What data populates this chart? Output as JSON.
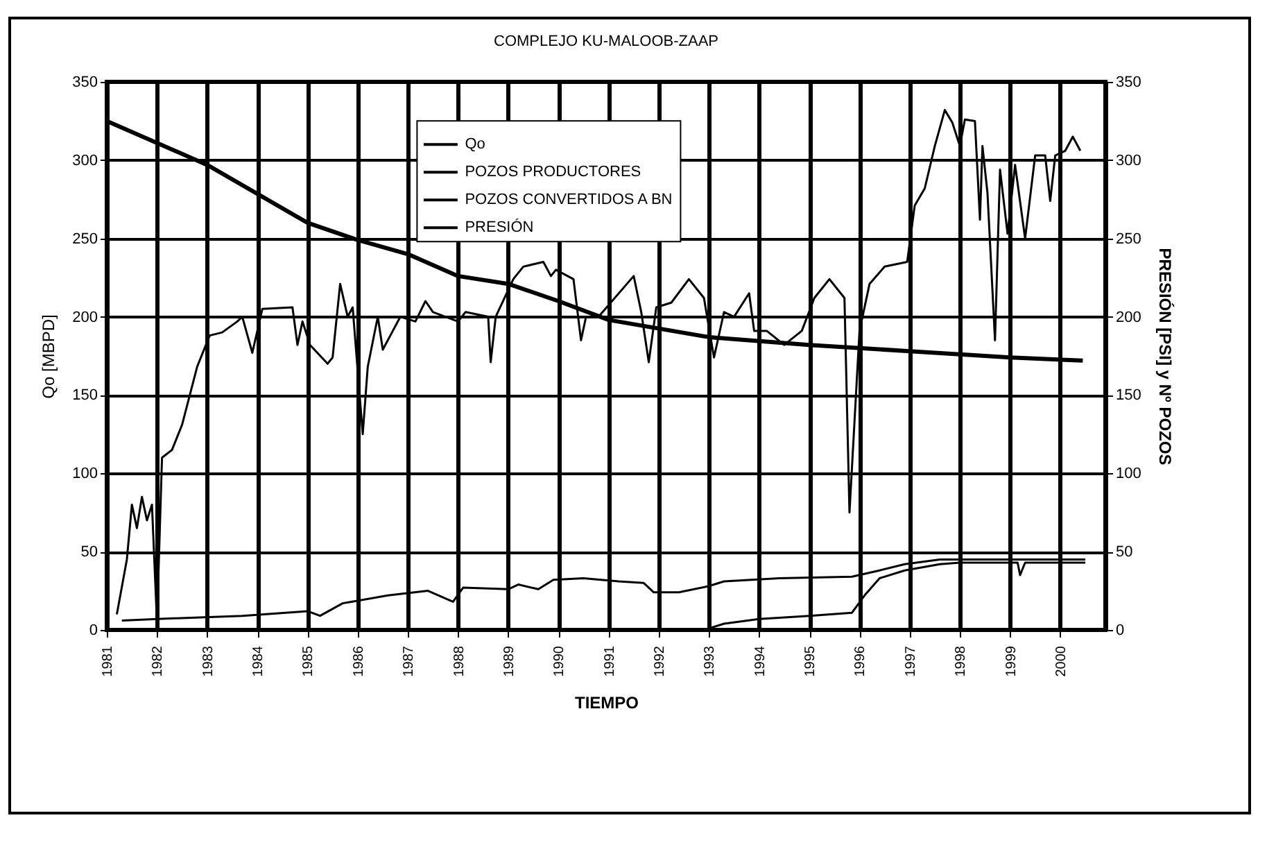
{
  "chart_data": {
    "type": "line",
    "title": "COMPLEJO KU-MALOOB-ZAAP",
    "xlabel": "TIEMPO",
    "ylabel": "Qo [MBPD]",
    "y2label": "PRESIÓN [PSI] y Nº POZOS",
    "xlim": [
      1981,
      2000.9
    ],
    "xticks": [
      1981,
      1982,
      1983,
      1984,
      1985,
      1986,
      1987,
      1988,
      1989,
      1990,
      1991,
      1992,
      1993,
      1994,
      1995,
      1996,
      1997,
      1998,
      1999,
      2000
    ],
    "ylim": [
      0,
      350
    ],
    "yticks": [
      0,
      50,
      100,
      150,
      200,
      250,
      300,
      350
    ],
    "y2lim": [
      0,
      350
    ],
    "y2ticks": [
      0,
      50,
      100,
      150,
      200,
      250,
      300,
      350
    ],
    "grid": true,
    "legend": "top",
    "series": [
      {
        "name": "Qo",
        "color": "#000000",
        "x": [
          1981.2,
          1981.4,
          1981.5,
          1981.6,
          1981.7,
          1981.8,
          1981.9,
          1982.0,
          1982.1,
          1982.3,
          1982.5,
          1982.8,
          1983.05,
          1983.3,
          1983.6,
          1983.7,
          1983.9,
          1984.1,
          1984.7,
          1984.8,
          1984.9,
          1985.05,
          1985.4,
          1985.5,
          1985.65,
          1985.8,
          1985.9,
          1986.1,
          1986.2,
          1986.4,
          1986.5,
          1986.7,
          1986.85,
          1987.15,
          1987.35,
          1987.5,
          1988.0,
          1988.15,
          1988.6,
          1988.65,
          1988.75,
          1989.1,
          1989.3,
          1989.7,
          1989.85,
          1989.95,
          1990.3,
          1990.45,
          1990.55,
          1990.8,
          1991.5,
          1991.65,
          1991.8,
          1991.95,
          1992.25,
          1992.6,
          1992.9,
          1993.1,
          1993.3,
          1993.5,
          1993.8,
          1993.9,
          1994.15,
          1994.5,
          1994.85,
          1995.1,
          1995.4,
          1995.7,
          1995.8,
          1996.0,
          1996.2,
          1996.5,
          1996.95,
          1997.1,
          1997.3,
          1997.5,
          1997.7,
          1997.85,
          1998.0,
          1998.1,
          1998.3,
          1998.4,
          1998.45,
          1998.55,
          1998.7,
          1998.8,
          1998.95,
          1999.1,
          1999.3,
          1999.5,
          1999.7,
          1999.8,
          1999.9,
          2000.1,
          2000.25,
          2000.4
        ],
        "values": [
          10,
          45,
          80,
          65,
          85,
          70,
          80,
          5,
          110,
          115,
          131,
          168,
          188,
          190,
          197,
          200,
          177,
          205,
          206,
          182,
          197,
          182,
          170,
          174,
          221,
          200,
          206,
          125,
          168,
          200,
          179,
          191,
          200,
          197,
          210,
          203,
          197,
          203,
          200,
          171,
          200,
          224,
          232,
          235,
          226,
          230,
          224,
          185,
          200,
          200,
          226,
          203,
          171,
          206,
          209,
          224,
          212,
          174,
          203,
          200,
          215,
          191,
          191,
          182,
          191,
          212,
          224,
          212,
          75,
          191,
          221,
          232,
          235,
          271,
          282,
          309,
          332,
          324,
          309,
          326,
          325,
          262,
          309,
          279,
          185,
          294,
          253,
          297,
          250,
          303,
          303,
          274,
          303,
          306,
          315,
          306
        ]
      },
      {
        "name": "POZOS PRODUCTORES",
        "color": "#000000",
        "axis": "y2",
        "x": [
          1981.3,
          1982.0,
          1983.7,
          1985.0,
          1985.25,
          1985.7,
          1986.6,
          1987.4,
          1987.9,
          1988.1,
          1989.0,
          1989.2,
          1989.6,
          1989.9,
          1990.5,
          1991.2,
          1991.7,
          1991.9,
          1992.4,
          1993.0,
          1993.3,
          1994.4,
          1995.85,
          1996.4,
          1996.9,
          1997.6,
          1998.5,
          2000.5
        ],
        "values": [
          6,
          7,
          9,
          12,
          9,
          17,
          22,
          25,
          18,
          27,
          26,
          29,
          26,
          32,
          33,
          31,
          30,
          24,
          24,
          28,
          31,
          33,
          34,
          38,
          42,
          45,
          45,
          45
        ]
      },
      {
        "name": "POZOS CONVERTIDOS A BN",
        "color": "#000000",
        "axis": "y2",
        "x": [
          1981.0,
          1992.9,
          1993.3,
          1994.0,
          1995.0,
          1995.85,
          1996.1,
          1996.4,
          1996.9,
          1997.6,
          1998.0,
          1999.15,
          1999.2,
          1999.3,
          2000.5
        ],
        "values": [
          0,
          0,
          4,
          7,
          9,
          11,
          22,
          33,
          38,
          42,
          43,
          43,
          35,
          43,
          43
        ]
      },
      {
        "name": "PRESIÓN",
        "color": "#000000",
        "axis": "y2",
        "x": [
          1981.0,
          1983.0,
          1985.0,
          1986.0,
          1987.0,
          1988.0,
          1989.0,
          1990.0,
          1991.0,
          1993.0,
          1995.0,
          1997.0,
          1999.0,
          2000.45
        ],
        "values": [
          325,
          297,
          260,
          249,
          240,
          226,
          221,
          210,
          198,
          187,
          182,
          178,
          174,
          172
        ]
      }
    ]
  }
}
